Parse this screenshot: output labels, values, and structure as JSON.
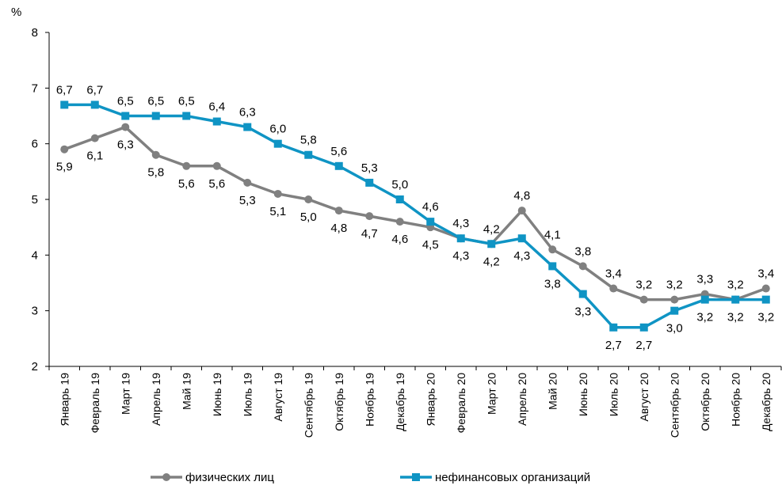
{
  "chart_data": {
    "type": "line",
    "y_axis_label": "%",
    "categories": [
      "Январь 19",
      "Февраль 19",
      "Март 19",
      "Апрель 19",
      "Май 19",
      "Июнь 19",
      "Июль 19",
      "Август 19",
      "Сентябрь 19",
      "Октябрь 19",
      "Ноябрь 19",
      "Декабрь 19",
      "Январь 20",
      "Февраль 20",
      "Март 20",
      "Апрель 20",
      "Май 20",
      "Июнь 20",
      "Июль 20",
      "Август 20",
      "Сентябрь 20",
      "Октябрь 20",
      "Ноябрь 20",
      "Декабрь 20"
    ],
    "series": [
      {
        "name": "физических лиц",
        "color": "#808080",
        "marker": "circle",
        "values": [
          5.9,
          6.1,
          6.3,
          5.8,
          5.6,
          5.6,
          5.3,
          5.1,
          5.0,
          4.8,
          4.7,
          4.6,
          4.5,
          4.3,
          4.2,
          4.8,
          4.1,
          3.8,
          3.4,
          3.2,
          3.2,
          3.3,
          3.2,
          3.4
        ],
        "value_labels": [
          "5,9",
          "6,1",
          "6,3",
          "5,8",
          "5,6",
          "5,6",
          "5,3",
          "5,1",
          "5,0",
          "4,8",
          "4,7",
          "4,6",
          "4,5",
          "4,3",
          "4,2",
          "4,8",
          "4,1",
          "3,8",
          "3,4",
          "3,2",
          "3,2",
          "3,3",
          "3,2",
          "3,4"
        ]
      },
      {
        "name": "нефинансовых организаций",
        "color": "#0f94c4",
        "marker": "square",
        "values": [
          6.7,
          6.7,
          6.5,
          6.5,
          6.5,
          6.4,
          6.3,
          6.0,
          5.8,
          5.6,
          5.3,
          5.0,
          4.6,
          4.3,
          4.2,
          4.3,
          3.8,
          3.3,
          2.7,
          2.7,
          3.0,
          3.2,
          3.2,
          3.2
        ],
        "value_labels": [
          "6,7",
          "6,7",
          "6,5",
          "6,5",
          "6,5",
          "6,4",
          "6,3",
          "6,0",
          "5,8",
          "5,6",
          "5,3",
          "5,0",
          "4,6",
          "4,3",
          "4,2",
          "4,3",
          "3,8",
          "3,3",
          "2,7",
          "2,7",
          "3,0",
          "3,2",
          "3,2",
          "3,2"
        ]
      }
    ],
    "ylim": [
      2,
      8
    ],
    "yticks": [
      2,
      3,
      4,
      5,
      6,
      7,
      8
    ],
    "grid": false,
    "legend": "bottom"
  }
}
